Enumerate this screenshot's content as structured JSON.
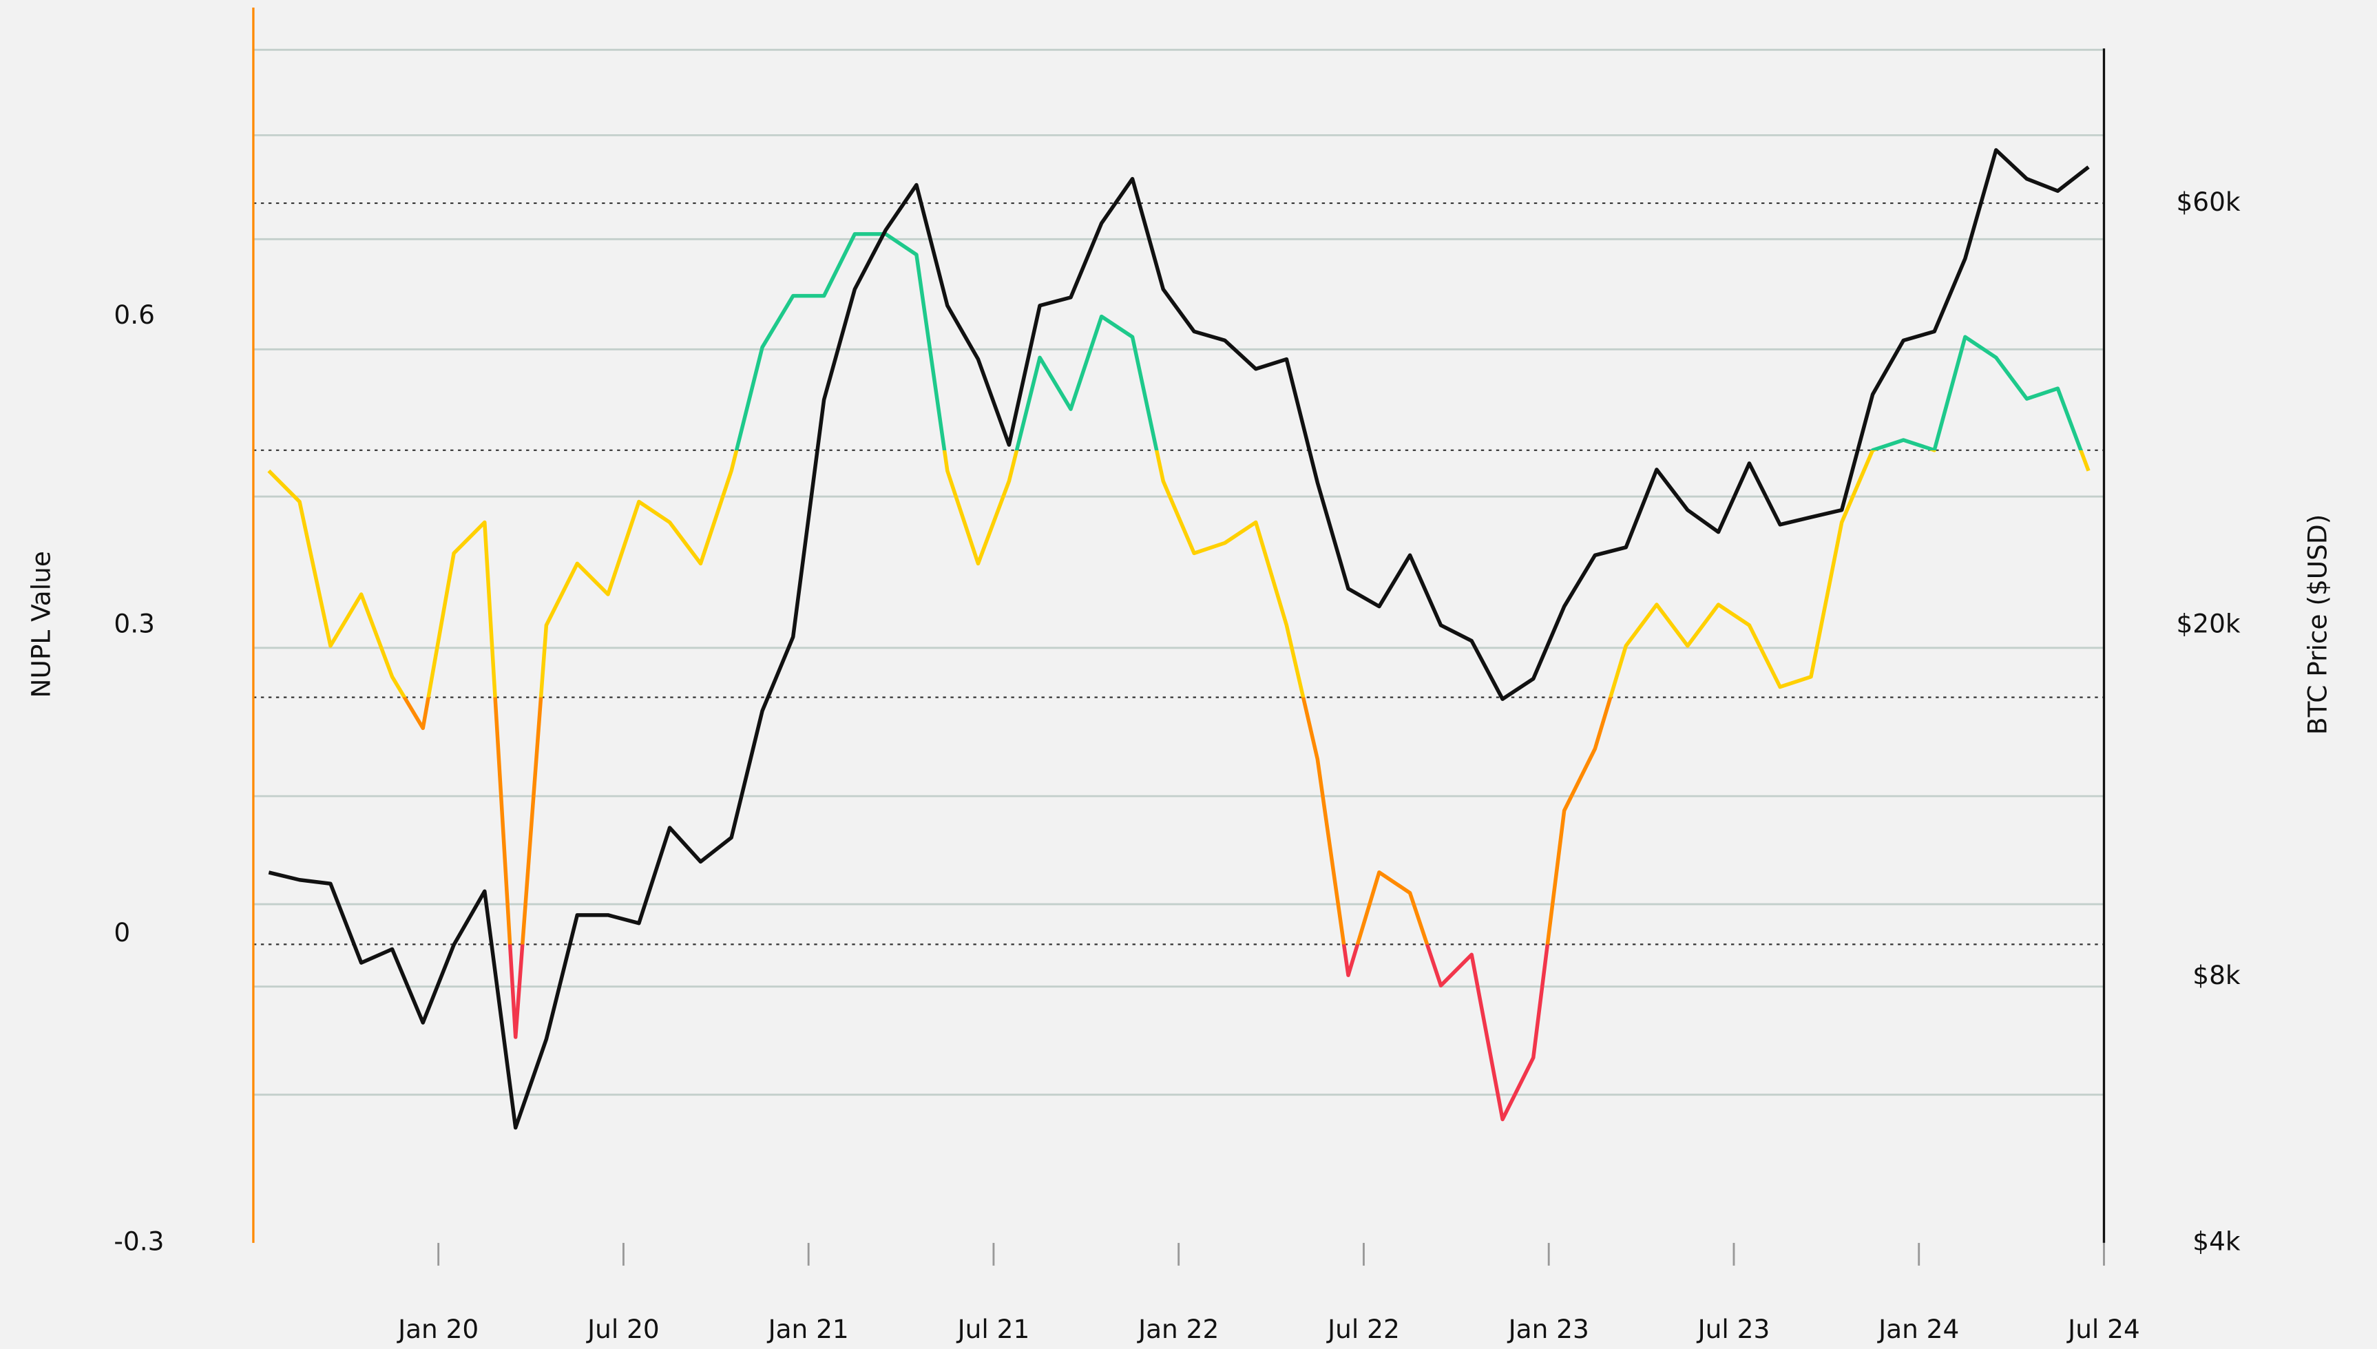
{
  "chart_data": {
    "type": "line",
    "y_label": "NUPL Value",
    "y2_label": "BTC Price ($USD)",
    "x": [
      "2019-07",
      "2019-08",
      "2019-09",
      "2019-10",
      "2019-11",
      "2019-12",
      "2020-01",
      "2020-02",
      "2020-03",
      "2020-04",
      "2020-05",
      "2020-06",
      "2020-07",
      "2020-08",
      "2020-09",
      "2020-10",
      "2020-11",
      "2020-12",
      "2021-01",
      "2021-02",
      "2021-03",
      "2021-04",
      "2021-05",
      "2021-06",
      "2021-07",
      "2021-08",
      "2021-09",
      "2021-10",
      "2021-11",
      "2021-12",
      "2022-01",
      "2022-02",
      "2022-03",
      "2022-04",
      "2022-05",
      "2022-06",
      "2022-07",
      "2022-08",
      "2022-09",
      "2022-10",
      "2022-11",
      "2022-12",
      "2023-01",
      "2023-02",
      "2023-03",
      "2023-04",
      "2023-05",
      "2023-06",
      "2023-07",
      "2023-08",
      "2023-09",
      "2023-10",
      "2023-11",
      "2023-12",
      "2024-01",
      "2024-02",
      "2024-03",
      "2024-04",
      "2024-05",
      "2024-06"
    ],
    "series": [
      {
        "values": [
          0.45,
          0.42,
          0.28,
          0.33,
          0.25,
          0.2,
          0.37,
          0.4,
          -0.1,
          0.3,
          0.36,
          0.33,
          0.42,
          0.4,
          0.36,
          0.45,
          0.57,
          0.62,
          0.62,
          0.68,
          0.68,
          0.66,
          0.45,
          0.36,
          0.44,
          0.56,
          0.51,
          0.6,
          0.58,
          0.44,
          0.37,
          0.38,
          0.4,
          0.3,
          0.17,
          -0.04,
          0.06,
          0.04,
          -0.05,
          -0.02,
          -0.18,
          -0.12,
          0.12,
          0.18,
          0.28,
          0.32,
          0.28,
          0.32,
          0.3,
          0.24,
          0.25,
          0.4,
          0.47,
          0.48,
          0.47,
          0.58,
          0.56,
          0.52,
          0.53,
          0.45
        ],
        "zone_colors": [
          "#1ec98b",
          "#1ec98b",
          "#ffd000",
          "#ff8a00",
          "#f2364b"
        ]
      },
      {
        "color": "#111111",
        "axis": "y2",
        "values": [
          10500,
          10300,
          10200,
          8300,
          8600,
          7100,
          8700,
          10000,
          5400,
          6800,
          9400,
          9400,
          9200,
          11800,
          10800,
          11500,
          16000,
          19400,
          36000,
          48000,
          56000,
          63000,
          46000,
          40000,
          32000,
          46000,
          47000,
          57000,
          64000,
          48000,
          43000,
          42000,
          39000,
          40000,
          29000,
          22000,
          21000,
          24000,
          20000,
          19200,
          16500,
          17400,
          21000,
          24000,
          24500,
          30000,
          27000,
          25500,
          30500,
          26000,
          26500,
          27000,
          36500,
          42000,
          43000,
          52000,
          69000,
          64000,
          62000,
          66000
        ]
      }
    ],
    "xlim": [
      "2019-07",
      "2024-07"
    ],
    "xticks": [
      {
        "value": "2020-01",
        "label": "Jan 20"
      },
      {
        "value": "2020-07",
        "label": "Jul 20"
      },
      {
        "value": "2021-01",
        "label": "Jan 21"
      },
      {
        "value": "2021-07",
        "label": "Jul 21"
      },
      {
        "value": "2022-01",
        "label": "Jan 22"
      },
      {
        "value": "2022-07",
        "label": "Jul 22"
      },
      {
        "value": "2023-01",
        "label": "Jan 23"
      },
      {
        "value": "2023-07",
        "label": "Jul 23"
      },
      {
        "value": "2024-01",
        "label": "Jan 24"
      },
      {
        "value": "2024-07",
        "label": "Jul 24"
      }
    ],
    "ylim": [
      -0.3,
      0.9
    ],
    "yticks": [
      -0.3,
      0,
      0.3,
      0.6
    ],
    "y2lim": [
      4000,
      100000
    ],
    "y2log": true,
    "y2ticks": [
      {
        "value": 4000,
        "label": "$4k"
      },
      {
        "value": 8000,
        "label": "$8k"
      },
      {
        "value": 20000,
        "label": "$20k"
      },
      {
        "value": 60000,
        "label": "$60k"
      }
    ],
    "grid_lines": [
      0.859,
      0.776,
      0.675,
      0.568,
      0.425,
      0.278,
      0.134,
      0.029,
      -0.051,
      -0.156
    ],
    "grid_color": "#c3cfcb",
    "reference_lines": [
      0.71,
      0.47,
      0.23,
      -0.01
    ],
    "left_axis_color": "#ff8a00",
    "right_axis_color": "#111111"
  }
}
